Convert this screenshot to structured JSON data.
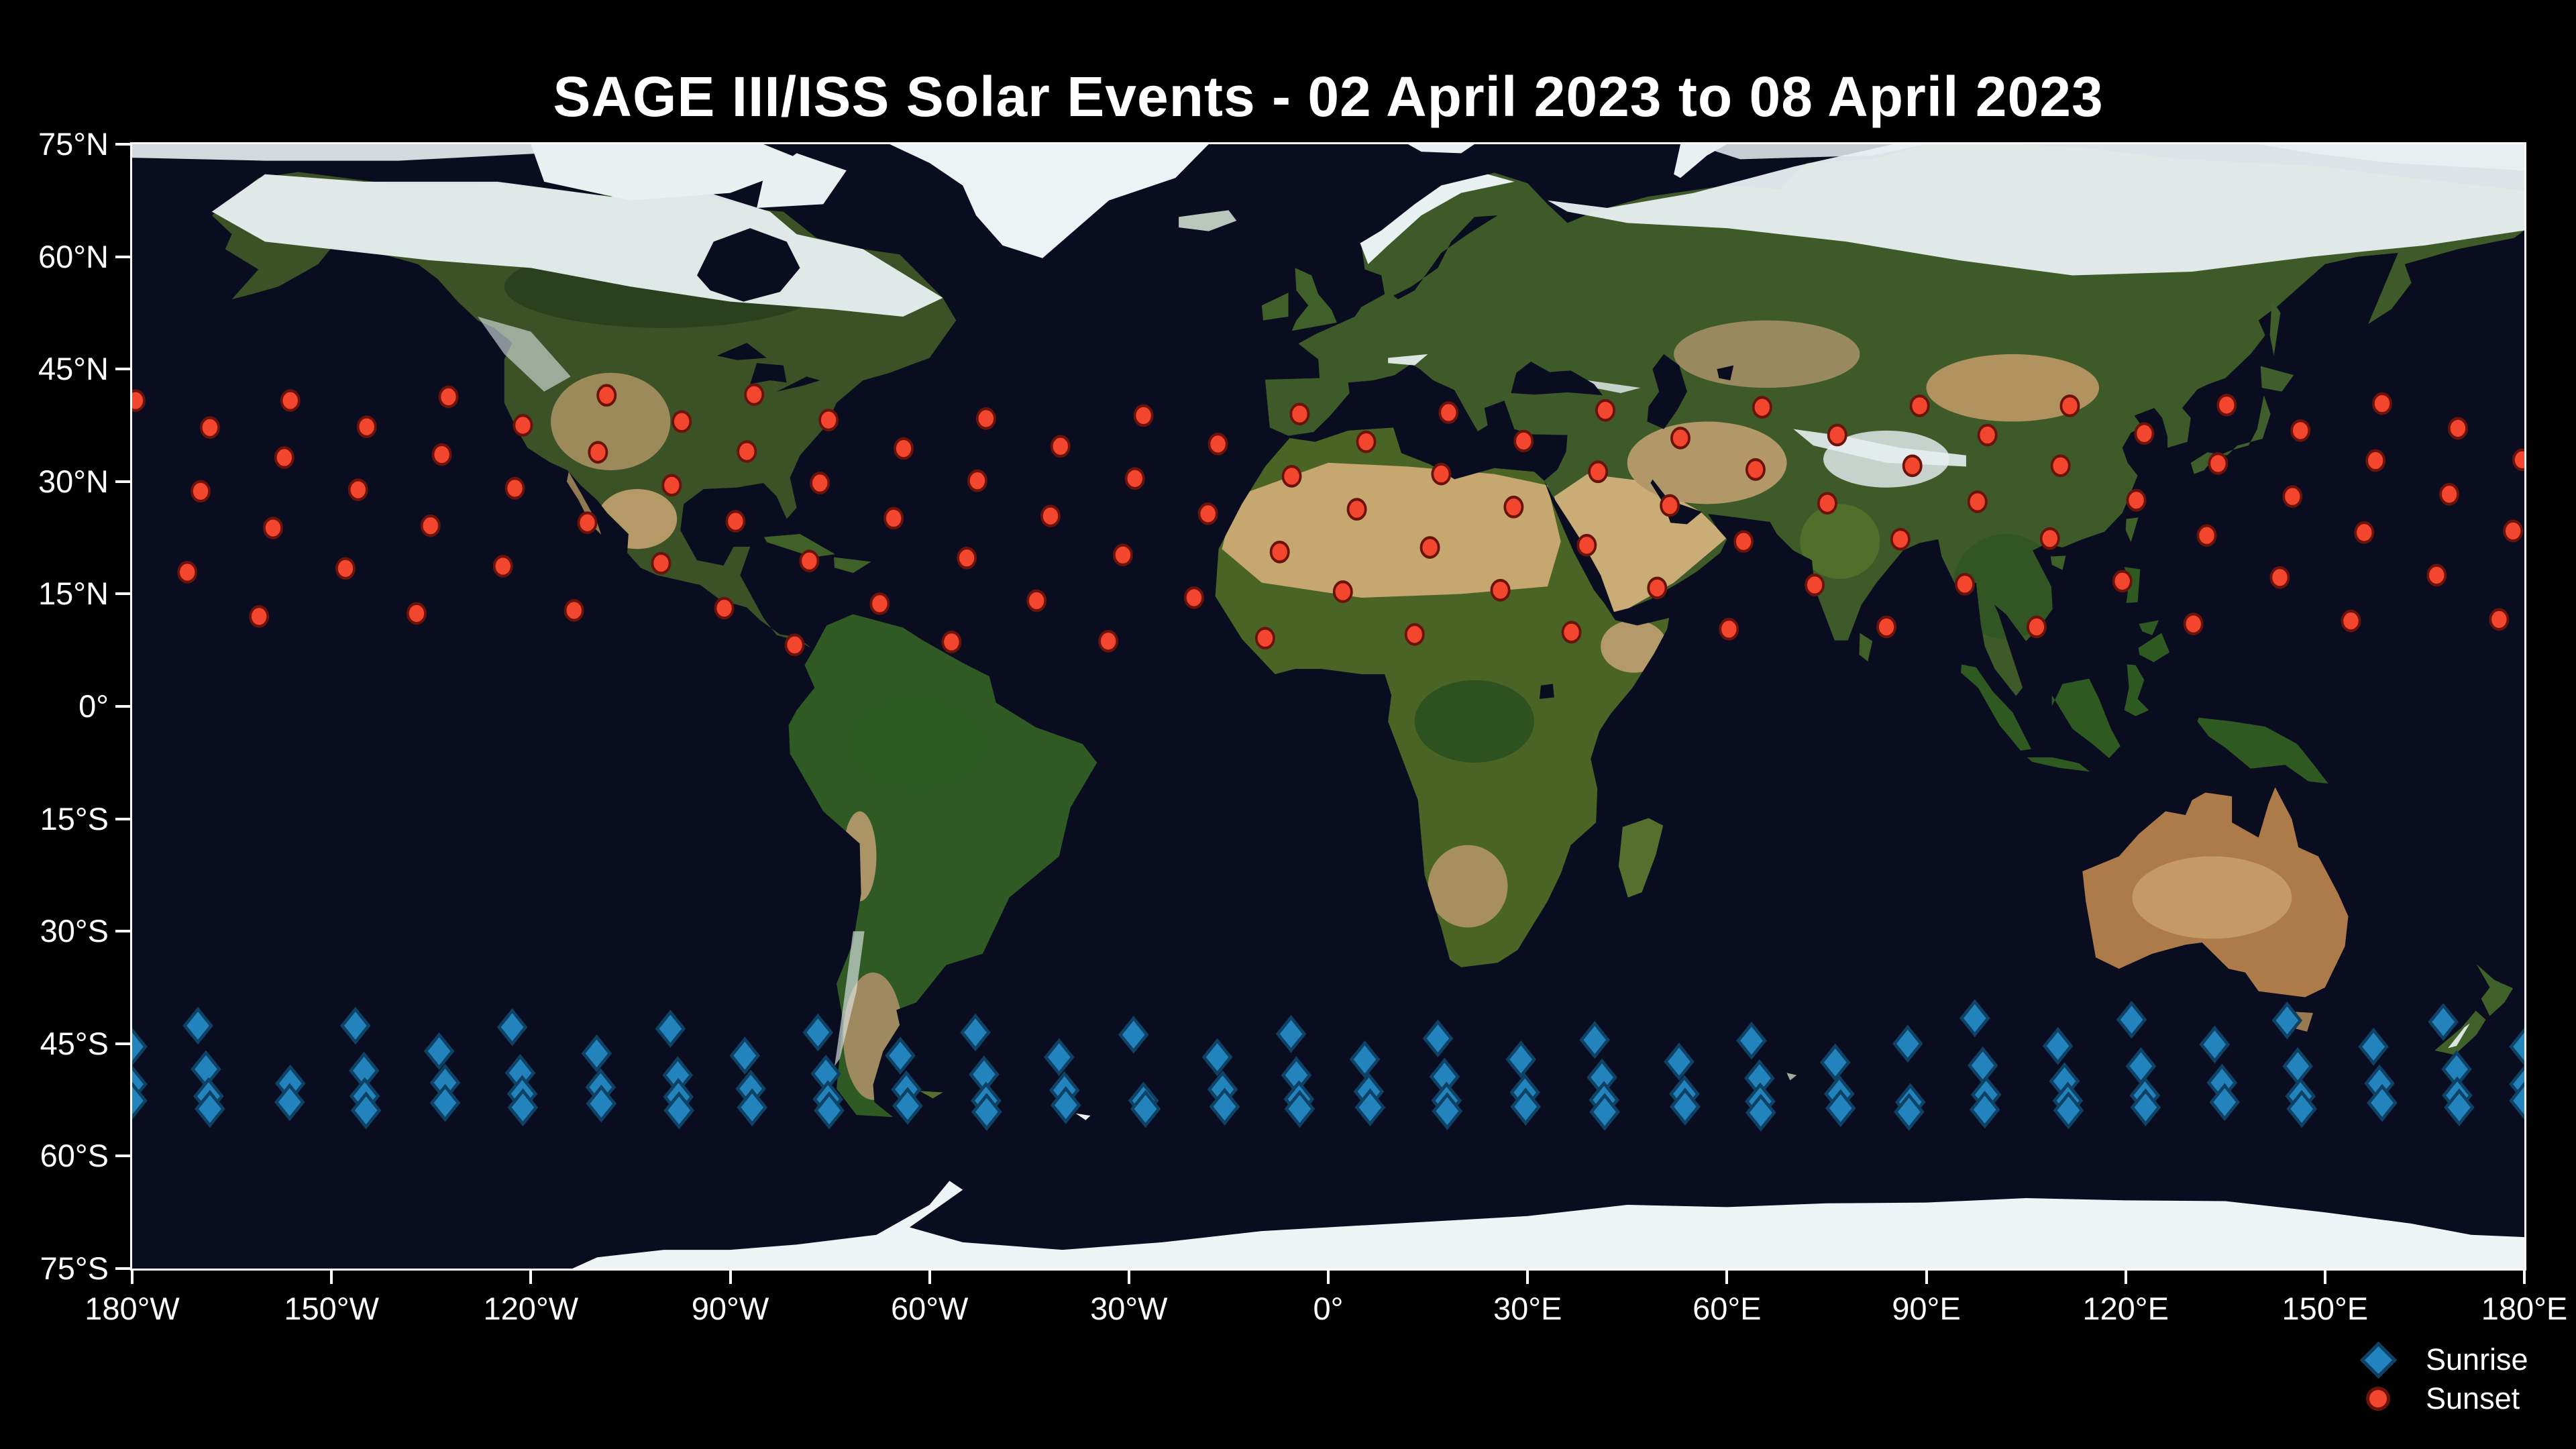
{
  "title": "SAGE III/ISS Solar Events - 02 April 2023 to 08 April 2023",
  "axes": {
    "x_ticks": [
      "180°W",
      "150°W",
      "120°W",
      "90°W",
      "60°W",
      "30°W",
      "0°",
      "30°E",
      "60°E",
      "90°E",
      "120°E",
      "150°E",
      "180°E"
    ],
    "y_ticks": [
      "75°N",
      "60°N",
      "45°N",
      "30°N",
      "15°N",
      "0°",
      "15°S",
      "30°S",
      "45°S",
      "60°S",
      "75°S"
    ]
  },
  "legend": {
    "items": [
      {
        "id": "sunrise",
        "label": "Sunrise",
        "marker": "diamond",
        "color": "#2383bd",
        "edge": "#0e4163"
      },
      {
        "id": "sunset",
        "label": "Sunset",
        "marker": "circle",
        "color": "#f2462f",
        "edge": "#6a130b"
      }
    ]
  },
  "chart_data": {
    "type": "scatter",
    "title": "SAGE III/ISS Solar Events - 02 April 2023 to 08 April 2023",
    "projection": "equirectangular world map (satellite basemap)",
    "xlabel": "longitude",
    "ylabel": "latitude",
    "xlim": [
      -180,
      180
    ],
    "ylim": [
      -75,
      75
    ],
    "x_tick_interval": 30,
    "y_tick_interval": 15,
    "grid": false,
    "legend_position": "lower right, below plot",
    "series": [
      {
        "name": "Sunrise",
        "marker": "diamond",
        "color": "#2383bd",
        "edge": "#0e4163",
        "points": [
          [
            -180,
            -45.4
          ],
          [
            -180,
            -50.4
          ],
          [
            -180,
            -52.6
          ],
          [
            180,
            -45.4
          ],
          [
            180,
            -50.4
          ],
          [
            180,
            -52.6
          ],
          [
            -170.1,
            -42.6
          ],
          [
            -168.9,
            -48.4
          ],
          [
            -168.5,
            -52.0
          ],
          [
            -168.3,
            -53.7
          ],
          [
            -156.2,
            -50.3
          ],
          [
            -156.3,
            -52.8
          ],
          [
            -146.4,
            -42.6
          ],
          [
            -145.1,
            -48.6
          ],
          [
            -145.0,
            -52.0
          ],
          [
            -144.8,
            -53.9
          ],
          [
            -133.8,
            -46.0
          ],
          [
            -132.9,
            -50.2
          ],
          [
            -132.9,
            -52.9
          ],
          [
            -122.8,
            -42.8
          ],
          [
            -121.6,
            -48.9
          ],
          [
            -121.3,
            -51.7
          ],
          [
            -121.2,
            -53.5
          ],
          [
            -110.1,
            -46.3
          ],
          [
            -109.5,
            -50.8
          ],
          [
            -109.4,
            -53.0
          ],
          [
            -99.0,
            -43.0
          ],
          [
            -97.9,
            -49.2
          ],
          [
            -97.8,
            -52.1
          ],
          [
            -97.7,
            -53.9
          ],
          [
            -87.8,
            -46.6
          ],
          [
            -86.9,
            -51.0
          ],
          [
            -86.7,
            -53.5
          ],
          [
            -76.8,
            -43.5
          ],
          [
            -75.6,
            -49.0
          ],
          [
            -75.3,
            -52.4
          ],
          [
            -75.1,
            -53.9
          ],
          [
            -64.4,
            -46.6
          ],
          [
            -63.5,
            -51.1
          ],
          [
            -63.3,
            -53.3
          ],
          [
            -53.1,
            -43.5
          ],
          [
            -51.8,
            -49.1
          ],
          [
            -51.5,
            -52.6
          ],
          [
            -51.4,
            -54.1
          ],
          [
            -40.5,
            -46.8
          ],
          [
            -39.7,
            -51.2
          ],
          [
            -39.5,
            -53.2
          ],
          [
            -29.3,
            -43.8
          ],
          [
            -27.8,
            -52.6
          ],
          [
            -27.5,
            -53.7
          ],
          [
            -16.7,
            -46.8
          ],
          [
            -15.9,
            -51.1
          ],
          [
            -15.6,
            -53.4
          ],
          [
            -5.6,
            -43.7
          ],
          [
            -4.8,
            -49.2
          ],
          [
            -4.4,
            -52.4
          ],
          [
            -4.3,
            -53.7
          ],
          [
            5.5,
            -47.1
          ],
          [
            6.1,
            -51.4
          ],
          [
            6.3,
            -53.5
          ],
          [
            16.5,
            -44.3
          ],
          [
            17.5,
            -49.4
          ],
          [
            17.8,
            -52.6
          ],
          [
            17.9,
            -54.0
          ],
          [
            29.0,
            -47.1
          ],
          [
            29.6,
            -51.5
          ],
          [
            29.7,
            -53.4
          ],
          [
            40.1,
            -44.5
          ],
          [
            41.2,
            -49.5
          ],
          [
            41.5,
            -52.5
          ],
          [
            41.6,
            -54.1
          ],
          [
            52.8,
            -47.4
          ],
          [
            53.6,
            -51.7
          ],
          [
            53.7,
            -53.4
          ],
          [
            63.7,
            -44.6
          ],
          [
            64.9,
            -49.6
          ],
          [
            65.0,
            -52.7
          ],
          [
            65.1,
            -54.2
          ],
          [
            76.3,
            -47.5
          ],
          [
            76.9,
            -51.7
          ],
          [
            77.1,
            -53.6
          ],
          [
            87.2,
            -45.0
          ],
          [
            87.6,
            -52.8
          ],
          [
            87.4,
            -54.1
          ],
          [
            97.3,
            -41.6
          ],
          [
            98.5,
            -47.9
          ],
          [
            99.0,
            -51.8
          ],
          [
            98.8,
            -53.8
          ],
          [
            109.8,
            -45.3
          ],
          [
            110.8,
            -50.0
          ],
          [
            111.3,
            -52.6
          ],
          [
            111.4,
            -53.9
          ],
          [
            120.9,
            -41.8
          ],
          [
            122.3,
            -48.0
          ],
          [
            122.9,
            -51.9
          ],
          [
            123.0,
            -53.5
          ],
          [
            133.4,
            -45.1
          ],
          [
            134.5,
            -50.2
          ],
          [
            134.9,
            -52.8
          ],
          [
            144.3,
            -41.9
          ],
          [
            145.9,
            -48.0
          ],
          [
            146.3,
            -52.0
          ],
          [
            146.5,
            -53.7
          ],
          [
            157.3,
            -45.4
          ],
          [
            158.2,
            -50.3
          ],
          [
            158.6,
            -52.9
          ],
          [
            167.8,
            -42.1
          ],
          [
            169.8,
            -48.4
          ],
          [
            169.9,
            -51.9
          ],
          [
            170.2,
            -53.5
          ]
        ]
      },
      {
        "name": "Sunset",
        "marker": "circle",
        "color": "#f2462f",
        "edge": "#6a130b",
        "points": [
          [
            -179.5,
            40.8
          ],
          [
            -156.2,
            40.8
          ],
          [
            -132.4,
            41.3
          ],
          [
            -108.6,
            41.5
          ],
          [
            -86.4,
            41.6
          ],
          [
            -168.3,
            37.2
          ],
          [
            -144.7,
            37.3
          ],
          [
            -121.2,
            37.5
          ],
          [
            -97.3,
            38.0
          ],
          [
            -75.2,
            38.2
          ],
          [
            -51.5,
            38.4
          ],
          [
            -27.8,
            38.8
          ],
          [
            -4.3,
            39.0
          ],
          [
            18.1,
            39.2
          ],
          [
            41.7,
            39.5
          ],
          [
            65.3,
            39.9
          ],
          [
            89.0,
            40.1
          ],
          [
            111.6,
            40.1
          ],
          [
            135.2,
            40.2
          ],
          [
            158.6,
            40.4
          ],
          [
            -157.1,
            33.2
          ],
          [
            -133.4,
            33.6
          ],
          [
            -109.9,
            33.9
          ],
          [
            -87.5,
            34.0
          ],
          [
            -63.9,
            34.4
          ],
          [
            -40.3,
            34.7
          ],
          [
            -16.6,
            35.0
          ],
          [
            5.7,
            35.3
          ],
          [
            29.4,
            35.4
          ],
          [
            53.0,
            35.8
          ],
          [
            76.6,
            36.2
          ],
          [
            99.2,
            36.2
          ],
          [
            122.8,
            36.4
          ],
          [
            146.3,
            36.8
          ],
          [
            170.0,
            37.1
          ],
          [
            -169.7,
            28.7
          ],
          [
            -146.0,
            28.9
          ],
          [
            -122.4,
            29.1
          ],
          [
            -98.8,
            29.5
          ],
          [
            -76.5,
            29.8
          ],
          [
            -52.8,
            30.1
          ],
          [
            -29.1,
            30.4
          ],
          [
            -5.5,
            30.7
          ],
          [
            17.0,
            31.0
          ],
          [
            40.6,
            31.3
          ],
          [
            64.3,
            31.6
          ],
          [
            87.9,
            32.1
          ],
          [
            110.2,
            32.1
          ],
          [
            133.9,
            32.4
          ],
          [
            157.6,
            32.8
          ],
          [
            179.7,
            32.9
          ],
          [
            -158.8,
            23.8
          ],
          [
            -135.1,
            24.1
          ],
          [
            -111.5,
            24.5
          ],
          [
            -89.2,
            24.7
          ],
          [
            -65.4,
            25.1
          ],
          [
            -41.8,
            25.4
          ],
          [
            -18.1,
            25.7
          ],
          [
            4.3,
            26.3
          ],
          [
            27.9,
            26.6
          ],
          [
            51.4,
            26.8
          ],
          [
            75.1,
            27.1
          ],
          [
            97.7,
            27.3
          ],
          [
            121.6,
            27.5
          ],
          [
            145.1,
            28.0
          ],
          [
            168.7,
            28.3
          ],
          [
            -171.7,
            17.9
          ],
          [
            -147.9,
            18.4
          ],
          [
            -124.2,
            18.7
          ],
          [
            -100.4,
            19.1
          ],
          [
            -78.1,
            19.4
          ],
          [
            -54.4,
            19.8
          ],
          [
            -30.9,
            20.2
          ],
          [
            -7.3,
            20.6
          ],
          [
            15.3,
            21.2
          ],
          [
            38.9,
            21.5
          ],
          [
            62.5,
            22.0
          ],
          [
            86.1,
            22.3
          ],
          [
            108.6,
            22.4
          ],
          [
            132.2,
            22.8
          ],
          [
            155.9,
            23.2
          ],
          [
            178.3,
            23.4
          ],
          [
            -160.9,
            12.0
          ],
          [
            -137.2,
            12.4
          ],
          [
            -113.5,
            12.8
          ],
          [
            -90.9,
            13.1
          ],
          [
            -67.5,
            13.7
          ],
          [
            -43.9,
            14.1
          ],
          [
            -20.2,
            14.5
          ],
          [
            2.2,
            15.3
          ],
          [
            25.9,
            15.5
          ],
          [
            49.5,
            15.8
          ],
          [
            73.2,
            16.2
          ],
          [
            95.8,
            16.3
          ],
          [
            119.5,
            16.7
          ],
          [
            143.2,
            17.2
          ],
          [
            166.8,
            17.5
          ],
          [
            -80.3,
            8.2
          ],
          [
            -56.7,
            8.6
          ],
          [
            -33.1,
            8.7
          ],
          [
            -9.5,
            9.1
          ],
          [
            13.0,
            9.6
          ],
          [
            36.6,
            9.9
          ],
          [
            60.3,
            10.3
          ],
          [
            84.0,
            10.6
          ],
          [
            106.6,
            10.6
          ],
          [
            130.2,
            11.0
          ],
          [
            153.9,
            11.4
          ],
          [
            176.2,
            11.6
          ]
        ]
      }
    ]
  }
}
